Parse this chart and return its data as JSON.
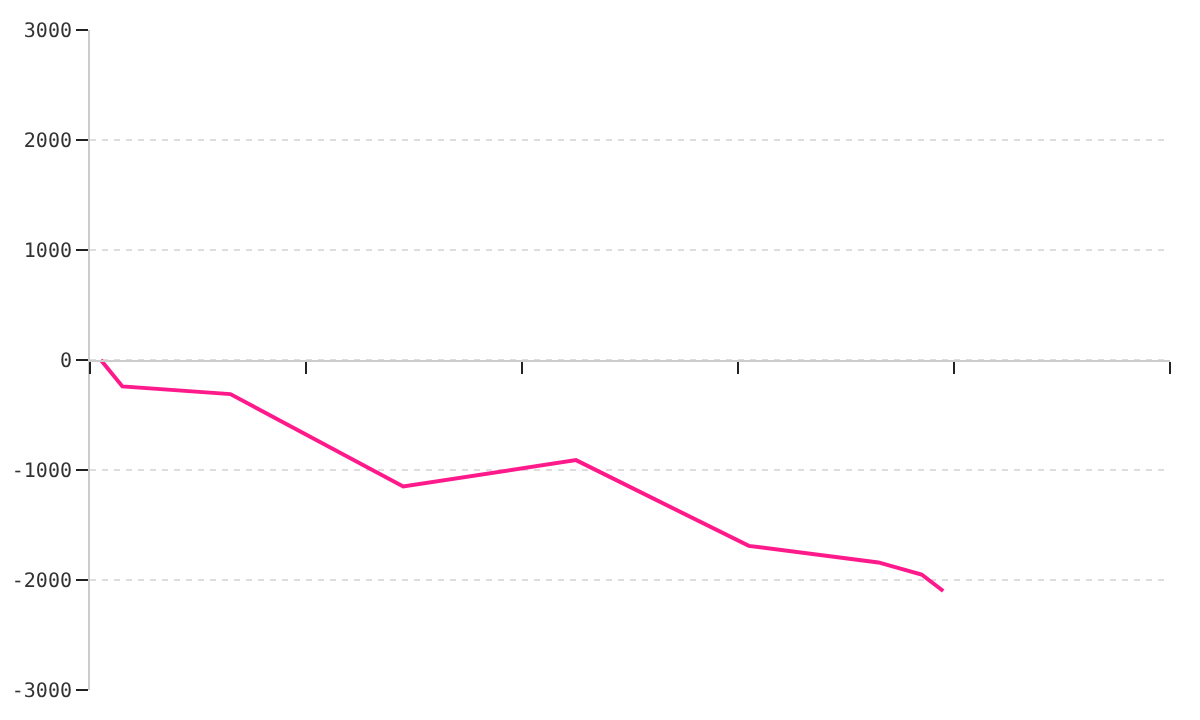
{
  "chart_data": {
    "type": "line",
    "categories": [
      null,
      null,
      null,
      null,
      null,
      null,
      null,
      null,
      null,
      null,
      null,
      null,
      null,
      null,
      null,
      null,
      null,
      null,
      null,
      null,
      null,
      null,
      null,
      null,
      null,
      null,
      null,
      null,
      null,
      null,
      null,
      null,
      null,
      null,
      null,
      null,
      null,
      null,
      null,
      null,
      null,
      null,
      null,
      null,
      null,
      null,
      null,
      null,
      null,
      null
    ],
    "series": [
      {
        "color": "#ff1a8c",
        "values": [
          0,
          -240,
          null,
          null,
          null,
          null,
          -310,
          null,
          null,
          null,
          null,
          null,
          null,
          null,
          -1150,
          null,
          null,
          null,
          null,
          null,
          null,
          null,
          -910,
          null,
          null,
          null,
          null,
          null,
          null,
          null,
          -1690,
          null,
          null,
          null,
          null,
          null,
          -1840,
          null,
          -1950,
          -2100,
          null,
          null,
          null,
          null,
          null,
          null,
          null,
          null,
          null,
          null
        ]
      }
    ],
    "ylim": [
      -3000,
      3000
    ],
    "yticks": [
      -3000,
      -2000,
      -1000,
      0,
      1000,
      2000,
      3000
    ],
    "grid": "y",
    "tick_labels": "y",
    "marker": "none",
    "line_style": "solid"
  }
}
